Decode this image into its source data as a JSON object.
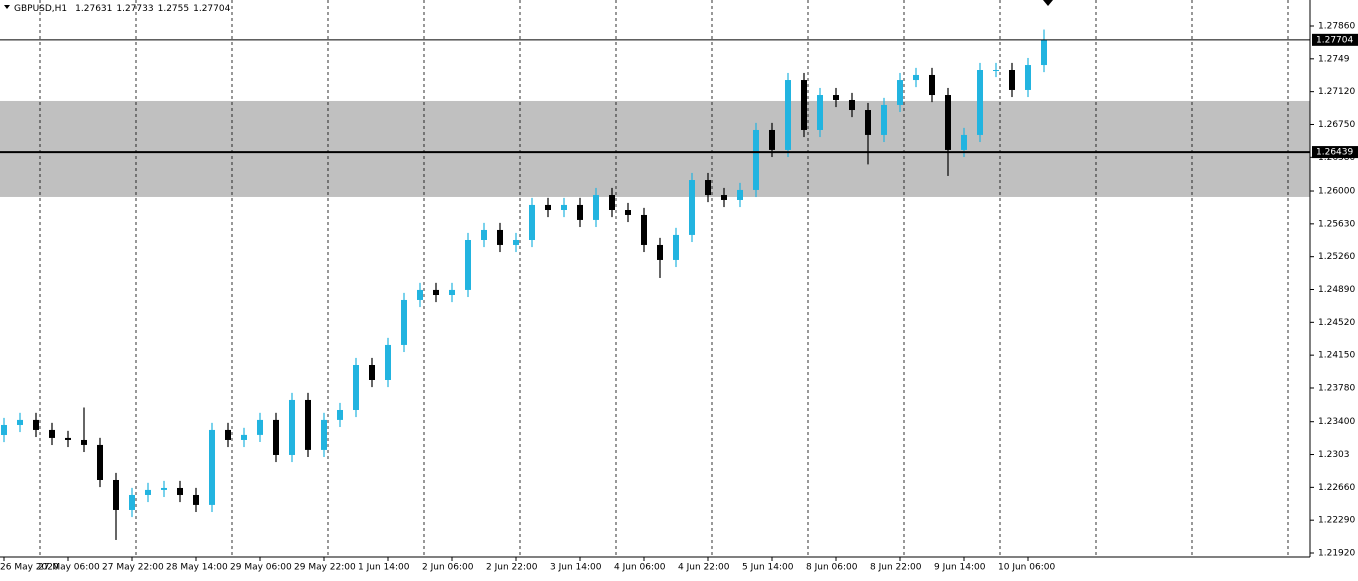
{
  "chart_data": {
    "type": "candlestick",
    "title": "GBPUSD,H1",
    "header_ohlc": [
      1.27631,
      1.27733,
      1.2755,
      1.27704
    ],
    "up_color": "#22b4e0",
    "down_color": "#000000",
    "categories": [
      "26 May 2020",
      null,
      null,
      null,
      "27 May 06:00",
      null,
      null,
      null,
      "27 May 22:00",
      null,
      null,
      null,
      "28 May 14:00",
      null,
      null,
      null,
      "29 May 06:00",
      null,
      null,
      null,
      "29 May 22:00",
      null,
      null,
      null,
      "1 Jun 14:00",
      null,
      null,
      null,
      "2 Jun 06:00",
      null,
      null,
      null,
      "2 Jun 22:00",
      null,
      null,
      null,
      "3 Jun 14:00",
      null,
      null,
      null,
      "4 Jun 06:00",
      null,
      null,
      null,
      "4 Jun 22:00",
      null,
      null,
      null,
      "5 Jun 14:00",
      null,
      null,
      null,
      "8 Jun 06:00",
      null,
      null,
      null,
      "8 Jun 22:00",
      null,
      null,
      null,
      "9 Jun 14:00",
      null,
      null,
      null,
      "10 Jun 06:00",
      null
    ],
    "open": [
      1.2325,
      1.23363,
      1.2342,
      1.23307,
      1.23217,
      1.23194,
      1.23138,
      1.22743,
      1.22405,
      1.22574,
      1.22631,
      1.22653,
      1.22574,
      1.22462,
      1.23307,
      1.23194,
      1.23251,
      1.2342,
      1.23025,
      1.23645,
      1.23082,
      1.2342,
      1.23532,
      1.24039,
      1.2387,
      1.24265,
      1.24772,
      1.24885,
      1.24828,
      1.24885,
      1.25448,
      1.25561,
      1.25392,
      1.25448,
      1.25843,
      1.25786,
      1.25843,
      1.25674,
      1.25955,
      1.25786,
      1.2573,
      1.25392,
      1.25223,
      1.25505,
      1.26124,
      1.25955,
      1.25899,
      1.26012,
      1.26688,
      1.26463,
      1.27251,
      1.26688,
      1.27082,
      1.27026,
      1.26913,
      1.26632,
      1.2697,
      1.27251,
      1.27308,
      1.27082,
      1.26463,
      1.26632,
      1.27364,
      1.27364,
      1.27139,
      1.2742
    ],
    "high": [
      1.23443,
      1.235,
      1.235,
      1.23387,
      1.23297,
      1.2356,
      1.23218,
      1.22823,
      1.22654,
      1.22711,
      1.22733,
      1.22733,
      1.22654,
      1.23387,
      1.23387,
      1.23331,
      1.235,
      1.235,
      1.23725,
      1.23725,
      1.235,
      1.23612,
      1.24119,
      1.24119,
      1.24345,
      1.24852,
      1.24965,
      1.24965,
      1.24965,
      1.25528,
      1.25641,
      1.25641,
      1.25528,
      1.25923,
      1.25923,
      1.25923,
      1.25923,
      1.26035,
      1.26035,
      1.25866,
      1.2581,
      1.25472,
      1.25585,
      1.26204,
      1.26204,
      1.26035,
      1.26092,
      1.26768,
      1.26768,
      1.27331,
      1.27331,
      1.27162,
      1.27162,
      1.27106,
      1.26993,
      1.2705,
      1.27331,
      1.27388,
      1.27388,
      1.27162,
      1.26712,
      1.27444,
      1.27444,
      1.27444,
      1.275,
      1.2782
    ],
    "low": [
      1.2317,
      1.23283,
      1.23227,
      1.23137,
      1.23114,
      1.23058,
      1.22663,
      1.22067,
      1.22325,
      1.22494,
      1.22551,
      1.22494,
      1.22382,
      1.22382,
      1.23114,
      1.23114,
      1.23171,
      1.22945,
      1.22945,
      1.23002,
      1.23002,
      1.2334,
      1.23452,
      1.2379,
      1.2379,
      1.24185,
      1.24692,
      1.24748,
      1.24748,
      1.24805,
      1.25368,
      1.25312,
      1.25312,
      1.25368,
      1.25706,
      1.25706,
      1.25594,
      1.25594,
      1.25706,
      1.2565,
      1.25312,
      1.2502,
      1.25143,
      1.25425,
      1.25875,
      1.25819,
      1.25819,
      1.25932,
      1.26383,
      1.26383,
      1.26608,
      1.26608,
      1.26946,
      1.26833,
      1.263,
      1.26552,
      1.2689,
      1.27171,
      1.27002,
      1.2617,
      1.26383,
      1.26552,
      1.27284,
      1.27059,
      1.27059,
      1.2734
    ],
    "close": [
      1.23363,
      1.2342,
      1.23307,
      1.23217,
      1.23194,
      1.23138,
      1.22743,
      1.22405,
      1.22574,
      1.22631,
      1.22653,
      1.22574,
      1.22462,
      1.23307,
      1.23194,
      1.23251,
      1.2342,
      1.23025,
      1.23645,
      1.23082,
      1.2342,
      1.23532,
      1.24039,
      1.2387,
      1.24265,
      1.24772,
      1.24885,
      1.24828,
      1.24885,
      1.25448,
      1.25561,
      1.25392,
      1.25448,
      1.25843,
      1.25786,
      1.25843,
      1.25674,
      1.25955,
      1.25786,
      1.2573,
      1.25392,
      1.25223,
      1.25505,
      1.26124,
      1.25955,
      1.25899,
      1.26012,
      1.26688,
      1.26463,
      1.27251,
      1.26688,
      1.27082,
      1.27026,
      1.26913,
      1.26632,
      1.2697,
      1.27251,
      1.27308,
      1.27082,
      1.26463,
      1.26632,
      1.27364,
      1.27364,
      1.27139,
      1.2742,
      1.27704
    ],
    "ylim": [
      1.21875,
      1.28153
    ],
    "yticks": [
      {
        "value": 1.2786,
        "label": "1.27860"
      },
      1.2749,
      {
        "value": 1.2712,
        "label": "1.27120"
      },
      {
        "value": 1.2675,
        "label": "1.26750"
      },
      {
        "value": 1.2638,
        "label": "1.26380"
      },
      {
        "value": 1.26,
        "label": "1.26000"
      },
      {
        "value": 1.2563,
        "label": "1.25630"
      },
      {
        "value": 1.2526,
        "label": "1.25260"
      },
      {
        "value": 1.2489,
        "label": "1.24890"
      },
      {
        "value": 1.2452,
        "label": "1.24520"
      },
      {
        "value": 1.2415,
        "label": "1.24150"
      },
      {
        "value": 1.2378,
        "label": "1.23780"
      },
      {
        "value": 1.234,
        "label": "1.23400"
      },
      1.2303,
      {
        "value": 1.2266,
        "label": "1.22660"
      },
      {
        "value": 1.2229,
        "label": "1.22290"
      },
      {
        "value": 1.2192,
        "label": "1.21920"
      }
    ],
    "zone": [
      1.25933,
      1.27015
    ],
    "zone_color": "#c0c0c0",
    "level": 1.26439,
    "bid": 1.27704
  }
}
